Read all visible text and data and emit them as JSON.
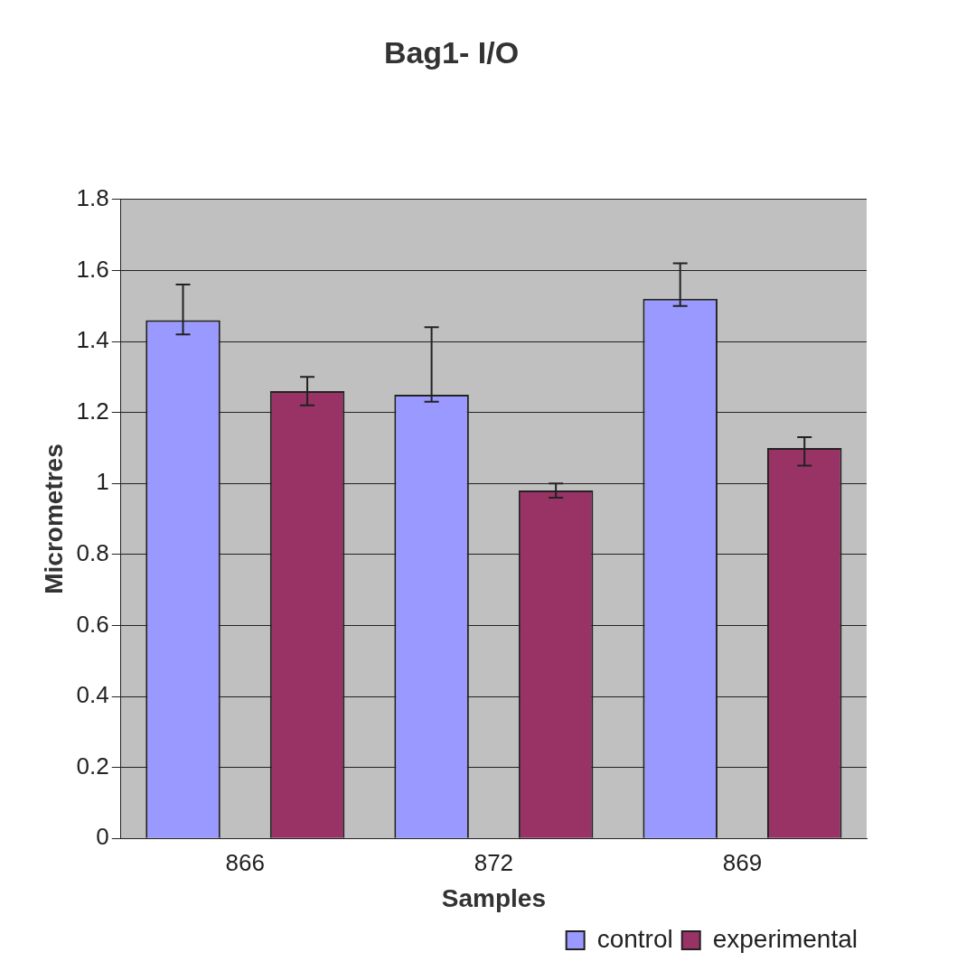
{
  "chart_data": {
    "type": "bar",
    "title": "Bag1- I/O",
    "xlabel": "Samples",
    "ylabel": "Micrometres",
    "categories": [
      "866",
      "872",
      "869"
    ],
    "series": [
      {
        "name": "control",
        "color": "#9999ff",
        "values": [
          1.46,
          1.25,
          1.52
        ],
        "errors": [
          [
            1.42,
            1.56
          ],
          [
            1.23,
            1.44
          ],
          [
            1.5,
            1.62
          ]
        ]
      },
      {
        "name": "experimental",
        "color": "#993366",
        "values": [
          1.26,
          0.98,
          1.1
        ],
        "errors": [
          [
            1.22,
            1.3
          ],
          [
            0.96,
            1.0
          ],
          [
            1.05,
            1.13
          ]
        ]
      }
    ],
    "ylim": [
      0,
      1.8
    ],
    "yticks": [
      0,
      0.2,
      0.4,
      0.6,
      0.8,
      1,
      1.2,
      1.4,
      1.6,
      1.8
    ],
    "grid": "y",
    "legend": "bottom right"
  }
}
